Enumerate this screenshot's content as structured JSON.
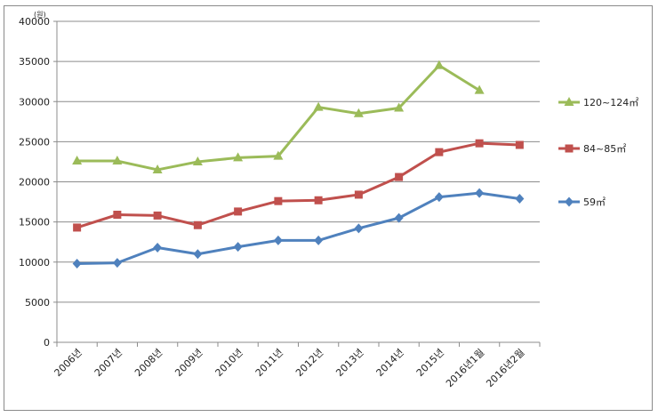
{
  "chart_data": {
    "type": "line",
    "title": "",
    "xlabel": "",
    "ylabel": "",
    "unit_label": "(원)",
    "ylim": [
      0,
      40000
    ],
    "yticks": [
      0,
      5000,
      10000,
      15000,
      20000,
      25000,
      30000,
      35000,
      40000
    ],
    "grid": true,
    "legend_position": "right",
    "categories": [
      "2006년",
      "2007년",
      "2008년",
      "2009년",
      "2010년",
      "2011년",
      "2012년",
      "2013년",
      "2014년",
      "2015년",
      "2016년1월",
      "2016년2월"
    ],
    "series": [
      {
        "name": "120~124㎡",
        "color": "#9bbb59",
        "marker": "triangle",
        "values": [
          22600,
          22600,
          21500,
          22500,
          23000,
          23200,
          29300,
          28500,
          29200,
          34500,
          31400,
          null
        ]
      },
      {
        "name": "84~85㎡",
        "color": "#c0504d",
        "marker": "square",
        "values": [
          14300,
          15900,
          15800,
          14600,
          16300,
          17600,
          17700,
          18400,
          20600,
          23700,
          24800,
          24600
        ]
      },
      {
        "name": "59㎡",
        "color": "#4f81bd",
        "marker": "diamond",
        "values": [
          9800,
          9900,
          11800,
          11000,
          11900,
          12700,
          12700,
          14200,
          15500,
          18100,
          18600,
          17900
        ]
      }
    ]
  }
}
